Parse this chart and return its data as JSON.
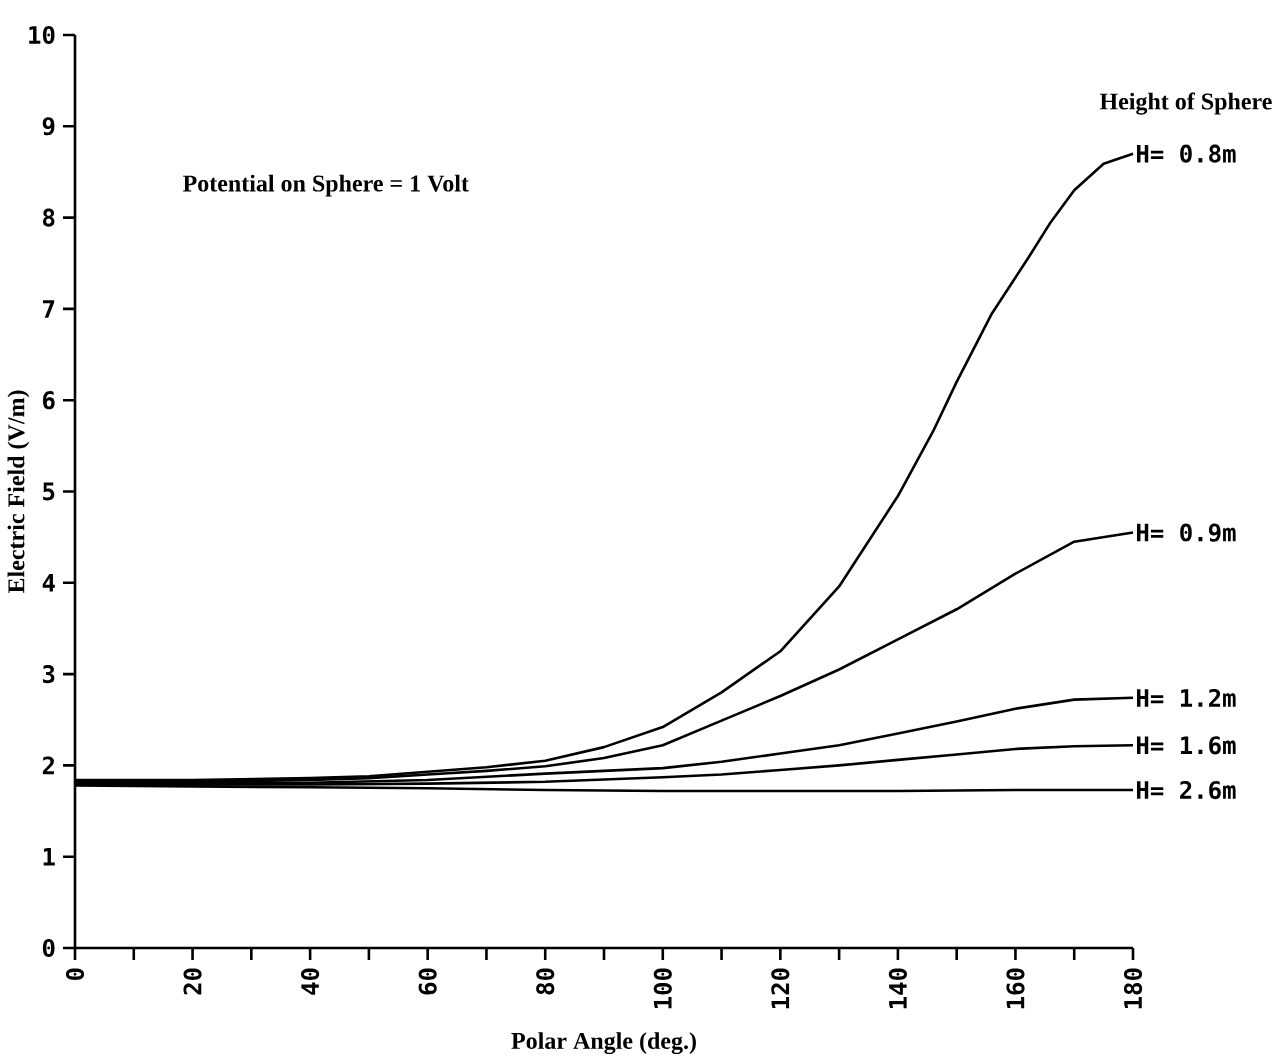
{
  "chart_data": {
    "type": "line",
    "xlabel": "Polar Angle  (deg.)",
    "ylabel": "Electric Field  (V/m)",
    "annotations": [
      "Potential on Sphere = 1 Volt"
    ],
    "legend_title": "Height of Sphere",
    "legend": "right",
    "xlim": [
      0,
      180
    ],
    "ylim": [
      0,
      10
    ],
    "xticks": [
      0,
      {
        "value": 10,
        "label": null
      },
      20,
      {
        "value": 30,
        "label": null
      },
      40,
      {
        "value": 50,
        "label": null
      },
      60,
      {
        "value": 70,
        "label": null
      },
      80,
      {
        "value": 90,
        "label": null
      },
      100,
      {
        "value": 110,
        "label": null
      },
      120,
      {
        "value": 130,
        "label": null
      },
      140,
      {
        "value": 150,
        "label": null
      },
      160,
      {
        "value": 170,
        "label": null
      },
      180
    ],
    "yticks": [
      0,
      1,
      2,
      3,
      4,
      5,
      6,
      7,
      8,
      9,
      10
    ],
    "series": [
      {
        "name": "H= 0.8m",
        "color": "#000000",
        "x": [
          0,
          20,
          40,
          50,
          60,
          70,
          80,
          90,
          100,
          110,
          120,
          130,
          140,
          146,
          150,
          156,
          162,
          166,
          170,
          175,
          180
        ],
        "values": [
          1.84,
          1.84,
          1.86,
          1.88,
          1.93,
          1.98,
          2.05,
          2.2,
          2.42,
          2.8,
          3.25,
          3.96,
          4.95,
          5.66,
          6.2,
          6.95,
          7.54,
          7.95,
          8.3,
          8.59,
          8.7
        ]
      },
      {
        "name": "H= 0.9m",
        "color": "#000000",
        "x": [
          0,
          20,
          40,
          50,
          60,
          70,
          80,
          90,
          100,
          110,
          120,
          130,
          140,
          150,
          160,
          170,
          180
        ],
        "values": [
          1.82,
          1.82,
          1.84,
          1.86,
          1.9,
          1.94,
          1.99,
          2.08,
          2.22,
          2.49,
          2.76,
          3.05,
          3.38,
          3.71,
          4.1,
          4.45,
          4.55
        ]
      },
      {
        "name": "H= 1.2m",
        "color": "#000000",
        "x": [
          0,
          20,
          40,
          60,
          80,
          100,
          110,
          120,
          130,
          140,
          150,
          160,
          170,
          180
        ],
        "values": [
          1.8,
          1.8,
          1.81,
          1.84,
          1.91,
          1.97,
          2.04,
          2.13,
          2.22,
          2.35,
          2.48,
          2.62,
          2.72,
          2.74
        ]
      },
      {
        "name": "H= 1.6m",
        "color": "#000000",
        "x": [
          0,
          20,
          40,
          60,
          80,
          100,
          110,
          120,
          130,
          140,
          150,
          160,
          170,
          180
        ],
        "values": [
          1.79,
          1.79,
          1.79,
          1.8,
          1.82,
          1.87,
          1.9,
          1.95,
          2.0,
          2.06,
          2.12,
          2.18,
          2.21,
          2.22
        ]
      },
      {
        "name": "H= 2.6m",
        "color": "#000000",
        "x": [
          0,
          20,
          40,
          60,
          80,
          100,
          120,
          140,
          160,
          180
        ],
        "values": [
          1.78,
          1.77,
          1.76,
          1.75,
          1.73,
          1.72,
          1.72,
          1.72,
          1.73,
          1.73
        ]
      }
    ]
  }
}
